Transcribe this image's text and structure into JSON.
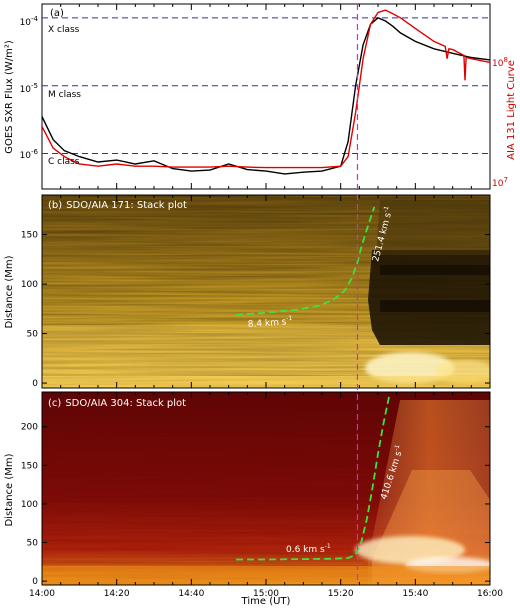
{
  "figure": {
    "panels": [
      {
        "label": "(a)",
        "ylabel": "GOES SXR Flux (W/m²)",
        "ylabel_right": "AIA 131 Light Curve",
        "yticks": [
          {
            "base": "10",
            "exp": "-6"
          },
          {
            "base": "10",
            "exp": "-5"
          },
          {
            "base": "10",
            "exp": "-4"
          }
        ],
        "yticks_right": [
          {
            "base": "10",
            "exp": "7"
          },
          {
            "base": "10",
            "exp": "8"
          }
        ],
        "class_labels": [
          "X class",
          "M class",
          "C class"
        ]
      },
      {
        "label": "(b)",
        "title": "SDO/AIA 171: Stack plot",
        "ylabel": "Distance (Mm)",
        "yticks": [
          "0",
          "50",
          "100",
          "150"
        ],
        "speed_labels": [
          {
            "value": "8.4 km s",
            "exp": "-1"
          },
          {
            "value": "251.4 km s",
            "exp": "-1"
          }
        ]
      },
      {
        "label": "(c)",
        "title": "SDO/AIA 304: Stack plot",
        "ylabel": "Distance (Mm)",
        "yticks": [
          "0",
          "50",
          "100",
          "150",
          "200"
        ],
        "speed_labels": [
          {
            "value": "0.6 km s",
            "exp": "-1"
          },
          {
            "value": "410.6 km s",
            "exp": "-1"
          }
        ]
      }
    ],
    "xticks": [
      "14:00",
      "14:20",
      "14:40",
      "15:00",
      "15:20",
      "15:40",
      "16:00"
    ],
    "xlabel": "Time (UT)"
  },
  "colors": {
    "goes": "#000000",
    "aia131": "#e00000",
    "class_lines": "#3030a0",
    "marker": "#e020e0",
    "fit": "#40e040"
  },
  "chart_data": [
    {
      "type": "line",
      "x_unit": "minutes after 14:00 UT",
      "xlim": [
        0,
        120
      ],
      "yscale": "log",
      "ylim": [
        3e-07,
        0.00016
      ],
      "series": [
        {
          "name": "GOES SXR",
          "x": [
            0,
            3,
            6,
            10,
            15,
            20,
            25,
            30,
            35,
            40,
            45,
            50,
            55,
            60,
            65,
            70,
            75,
            80,
            82,
            84,
            86,
            88,
            90,
            92,
            94,
            96,
            100,
            105,
            110,
            115,
            120
          ],
          "y": [
            3.5e-06,
            1.6e-06,
            1.1e-06,
            9e-07,
            7.5e-07,
            8e-07,
            7e-07,
            7.8e-07,
            6e-07,
            5.5e-07,
            5.7e-07,
            7e-07,
            5.8e-07,
            5.5e-07,
            5e-07,
            5.3e-07,
            5.5e-07,
            6.5e-07,
            1.5e-06,
            1e-05,
            4e-05,
            8e-05,
            0.0001,
            9e-05,
            7.5e-05,
            6e-05,
            4.5e-05,
            3.5e-05,
            3e-05,
            2.6e-05,
            2.4e-05
          ]
        },
        {
          "name": "AIA 131",
          "x": [
            0,
            3,
            6,
            10,
            15,
            20,
            25,
            30,
            35,
            40,
            45,
            50,
            55,
            60,
            65,
            70,
            75,
            80,
            82,
            84,
            86,
            88,
            90,
            92,
            94,
            96,
            100,
            105,
            108,
            108.5,
            109,
            110,
            113,
            113.3,
            113.6,
            115,
            120
          ],
          "y": [
            2.5e-06,
            1.2e-06,
            9e-07,
            7e-07,
            6.5e-07,
            7e-07,
            6.5e-07,
            6.5e-07,
            6.3e-07,
            6.3e-07,
            6.3e-07,
            6.5e-07,
            6.3e-07,
            6.2e-07,
            6.2e-07,
            6.2e-07,
            6.2e-07,
            6.5e-07,
            9e-07,
            4e-06,
            2.5e-05,
            8e-05,
            0.00012,
            0.00013,
            0.000115,
            0.0001,
            7e-05,
            4.5e-05,
            3.8e-05,
            2.5e-05,
            3.5e-05,
            3.4e-05,
            2.8e-05,
            1.2e-05,
            2.6e-05,
            2.5e-05,
            2.2e-05
          ]
        }
      ],
      "hlines": [
        0.0001,
        1e-05,
        1e-06
      ],
      "vline_x": 84.5
    },
    {
      "type": "heatmap",
      "title": "SDO/AIA 171: Stack plot",
      "xlabel": "",
      "ylabel": "Distance (Mm)",
      "xlim": [
        0,
        120
      ],
      "ylim": [
        -5,
        190
      ],
      "fit_curve": {
        "x": [
          52,
          60,
          68,
          74,
          78,
          81,
          83,
          84.5,
          85.5,
          87,
          89
        ],
        "y": [
          69,
          71,
          74,
          78,
          84,
          93,
          106,
          122,
          137,
          155,
          178
        ]
      },
      "vline_x": 84.5
    },
    {
      "type": "heatmap",
      "title": "SDO/AIA 304: Stack plot",
      "xlabel": "Time (UT)",
      "ylabel": "Distance (Mm)",
      "xlim": [
        0,
        120
      ],
      "ylim": [
        -5,
        245
      ],
      "fit_curve": {
        "x": [
          52,
          60,
          70,
          78,
          82,
          84,
          85.5,
          87,
          88.5,
          90,
          91.5,
          93
        ],
        "y": [
          28,
          28,
          28.5,
          29,
          30,
          34,
          50,
          80,
          120,
          165,
          205,
          240
        ]
      },
      "vline_x": 84.5
    }
  ]
}
